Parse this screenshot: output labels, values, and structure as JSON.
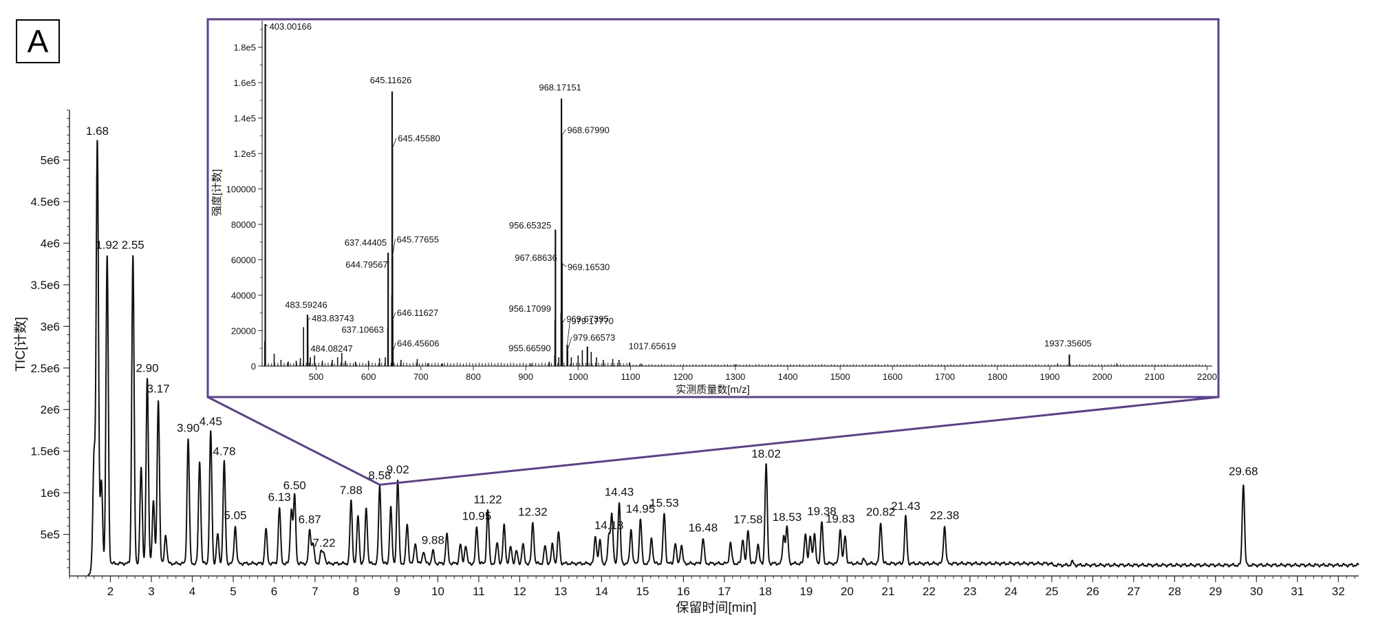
{
  "panel_label": "A",
  "colors": {
    "trace": "#111111",
    "inset_border": "#5b3f8e",
    "axis": "#333333"
  },
  "chart_data": [
    {
      "type": "line",
      "name": "main_chromatogram",
      "xlabel": "保留时间[min]",
      "ylabel": "TIC[计数]",
      "xlim": [
        1.0,
        32.5
      ],
      "ylim": [
        0,
        5600000
      ],
      "x_ticks": [
        2,
        3,
        4,
        5,
        6,
        7,
        8,
        9,
        10,
        11,
        12,
        13,
        14,
        15,
        16,
        17,
        18,
        19,
        20,
        21,
        22,
        23,
        24,
        25,
        26,
        27,
        28,
        29,
        30,
        31,
        32
      ],
      "y_ticks": [
        {
          "v": 500000,
          "label": "5e5"
        },
        {
          "v": 1000000,
          "label": "1e6"
        },
        {
          "v": 1500000,
          "label": "1.5e6"
        },
        {
          "v": 2000000,
          "label": "2e6"
        },
        {
          "v": 2500000,
          "label": "2.5e6"
        },
        {
          "v": 3000000,
          "label": "3e6"
        },
        {
          "v": 3500000,
          "label": "3.5e6"
        },
        {
          "v": 4000000,
          "label": "4e6"
        },
        {
          "v": 4500000,
          "label": "4.5e6"
        },
        {
          "v": 5000000,
          "label": "5e6"
        }
      ],
      "baseline": 150000,
      "labeled_peaks": [
        {
          "rt": 1.68,
          "label": "1.68",
          "intensity": 5220000
        },
        {
          "rt": 1.92,
          "label": "1.92",
          "intensity": 3850000
        },
        {
          "rt": 2.55,
          "label": "2.55",
          "intensity": 3850000
        },
        {
          "rt": 2.9,
          "label": "2.90",
          "intensity": 2370000
        },
        {
          "rt": 3.17,
          "label": "3.17",
          "intensity": 2120000
        },
        {
          "rt": 3.9,
          "label": "3.90",
          "intensity": 1650000
        },
        {
          "rt": 4.45,
          "label": "4.45",
          "intensity": 1730000
        },
        {
          "rt": 4.78,
          "label": "4.78",
          "intensity": 1370000
        },
        {
          "rt": 5.05,
          "label": "5.05",
          "intensity": 600000
        },
        {
          "rt": 6.13,
          "label": "6.13",
          "intensity": 820000
        },
        {
          "rt": 6.5,
          "label": "6.50",
          "intensity": 960000
        },
        {
          "rt": 6.87,
          "label": "6.87",
          "intensity": 550000
        },
        {
          "rt": 7.22,
          "label": "7.22",
          "intensity": 270000
        },
        {
          "rt": 7.88,
          "label": "7.88",
          "intensity": 900000
        },
        {
          "rt": 8.58,
          "label": "8.58",
          "intensity": 1080000
        },
        {
          "rt": 9.02,
          "label": "9.02",
          "intensity": 1150000
        },
        {
          "rt": 9.88,
          "label": "9.88",
          "intensity": 300000
        },
        {
          "rt": 10.95,
          "label": "10.95",
          "intensity": 590000
        },
        {
          "rt": 11.22,
          "label": "11.22",
          "intensity": 790000
        },
        {
          "rt": 12.32,
          "label": "12.32",
          "intensity": 640000
        },
        {
          "rt": 14.18,
          "label": "14.18",
          "intensity": 480000
        },
        {
          "rt": 14.43,
          "label": "14.43",
          "intensity": 880000
        },
        {
          "rt": 14.95,
          "label": "14.95",
          "intensity": 680000
        },
        {
          "rt": 15.53,
          "label": "15.53",
          "intensity": 750000
        },
        {
          "rt": 16.48,
          "label": "16.48",
          "intensity": 450000
        },
        {
          "rt": 17.58,
          "label": "17.58",
          "intensity": 550000
        },
        {
          "rt": 18.02,
          "label": "18.02",
          "intensity": 1340000
        },
        {
          "rt": 18.53,
          "label": "18.53",
          "intensity": 580000
        },
        {
          "rt": 19.38,
          "label": "19.38",
          "intensity": 650000
        },
        {
          "rt": 19.83,
          "label": "19.83",
          "intensity": 560000
        },
        {
          "rt": 20.82,
          "label": "20.82",
          "intensity": 640000
        },
        {
          "rt": 21.43,
          "label": "21.43",
          "intensity": 710000
        },
        {
          "rt": 22.38,
          "label": "22.38",
          "intensity": 600000
        },
        {
          "rt": 29.68,
          "label": "29.68",
          "intensity": 1130000
        }
      ],
      "minor_peaks": [
        {
          "rt": 1.6,
          "intensity": 1430000
        },
        {
          "rt": 1.78,
          "intensity": 1150000
        },
        {
          "rt": 2.75,
          "intensity": 1300000
        },
        {
          "rt": 3.05,
          "intensity": 900000
        },
        {
          "rt": 3.35,
          "intensity": 500000
        },
        {
          "rt": 4.18,
          "intensity": 1380000
        },
        {
          "rt": 4.62,
          "intensity": 500000
        },
        {
          "rt": 5.8,
          "intensity": 560000
        },
        {
          "rt": 6.42,
          "intensity": 800000
        },
        {
          "rt": 6.95,
          "intensity": 400000
        },
        {
          "rt": 7.15,
          "intensity": 300000
        },
        {
          "rt": 8.05,
          "intensity": 720000
        },
        {
          "rt": 8.25,
          "intensity": 820000
        },
        {
          "rt": 8.85,
          "intensity": 820000
        },
        {
          "rt": 9.25,
          "intensity": 620000
        },
        {
          "rt": 9.45,
          "intensity": 400000
        },
        {
          "rt": 9.65,
          "intensity": 300000
        },
        {
          "rt": 10.22,
          "intensity": 500000
        },
        {
          "rt": 10.55,
          "intensity": 380000
        },
        {
          "rt": 10.68,
          "intensity": 370000
        },
        {
          "rt": 11.45,
          "intensity": 400000
        },
        {
          "rt": 11.62,
          "intensity": 610000
        },
        {
          "rt": 11.78,
          "intensity": 350000
        },
        {
          "rt": 11.92,
          "intensity": 300000
        },
        {
          "rt": 12.08,
          "intensity": 380000
        },
        {
          "rt": 12.62,
          "intensity": 360000
        },
        {
          "rt": 12.8,
          "intensity": 380000
        },
        {
          "rt": 12.95,
          "intensity": 520000
        },
        {
          "rt": 13.85,
          "intensity": 480000
        },
        {
          "rt": 13.96,
          "intensity": 420000
        },
        {
          "rt": 14.25,
          "intensity": 740000
        },
        {
          "rt": 14.72,
          "intensity": 560000
        },
        {
          "rt": 15.22,
          "intensity": 460000
        },
        {
          "rt": 15.8,
          "intensity": 390000
        },
        {
          "rt": 15.95,
          "intensity": 370000
        },
        {
          "rt": 17.15,
          "intensity": 400000
        },
        {
          "rt": 17.45,
          "intensity": 450000
        },
        {
          "rt": 17.82,
          "intensity": 380000
        },
        {
          "rt": 18.45,
          "intensity": 480000
        },
        {
          "rt": 18.98,
          "intensity": 520000
        },
        {
          "rt": 19.1,
          "intensity": 480000
        },
        {
          "rt": 19.2,
          "intensity": 500000
        },
        {
          "rt": 19.95,
          "intensity": 480000
        },
        {
          "rt": 20.4,
          "intensity": 200000
        },
        {
          "rt": 25.5,
          "intensity": 190000
        }
      ]
    },
    {
      "type": "bar",
      "name": "inset_mass_spectrum",
      "xlabel": "实测质量数[m/z]",
      "ylabel": "强度[计数]",
      "xlim": [
        397,
        2210
      ],
      "ylim": [
        0,
        195000
      ],
      "x_ticks": [
        500,
        600,
        700,
        800,
        900,
        1000,
        1100,
        1200,
        1300,
        1400,
        1500,
        1600,
        1700,
        1800,
        1900,
        2000,
        2100,
        2200
      ],
      "y_ticks": [
        {
          "v": 0,
          "label": "0"
        },
        {
          "v": 20000,
          "label": "20000"
        },
        {
          "v": 40000,
          "label": "40000"
        },
        {
          "v": 60000,
          "label": "60000"
        },
        {
          "v": 80000,
          "label": "80000"
        },
        {
          "v": 100000,
          "label": "100000"
        },
        {
          "v": 120000,
          "label": "1.2e5"
        },
        {
          "v": 140000,
          "label": "1.4e5"
        },
        {
          "v": 160000,
          "label": "1.6e5"
        },
        {
          "v": 180000,
          "label": "1.8e5"
        }
      ],
      "labeled_peaks": [
        {
          "mz": 403.00166,
          "label": "403.00166",
          "intensity": 193000
        },
        {
          "mz": 483.59246,
          "label": "483.59246",
          "intensity": 29000
        },
        {
          "mz": 483.83743,
          "label": "483.83743",
          "intensity": 26000
        },
        {
          "mz": 484.08247,
          "label": "484.08247",
          "intensity": 12000
        },
        {
          "mz": 637.44405,
          "label": "637.44405",
          "intensity": 64000
        },
        {
          "mz": 637.10663,
          "label": "637.10663",
          "intensity": 22000
        },
        {
          "mz": 644.79567,
          "label": "644.79567",
          "intensity": 40000
        },
        {
          "mz": 645.11626,
          "label": "645.11626",
          "intensity": 155000
        },
        {
          "mz": 645.4558,
          "label": "645.45580",
          "intensity": 123000
        },
        {
          "mz": 645.77655,
          "label": "645.77655",
          "intensity": 62000
        },
        {
          "mz": 646.11627,
          "label": "646.11627",
          "intensity": 26000
        },
        {
          "mz": 646.45606,
          "label": "646.45606",
          "intensity": 8000
        },
        {
          "mz": 956.65325,
          "label": "956.65325",
          "intensity": 77000
        },
        {
          "mz": 956.17099,
          "label": "956.17099",
          "intensity": 26000
        },
        {
          "mz": 955.6659,
          "label": "955.66590",
          "intensity": 6000
        },
        {
          "mz": 967.68636,
          "label": "967.68636",
          "intensity": 30000
        },
        {
          "mz": 968.17151,
          "label": "968.17151",
          "intensity": 151000
        },
        {
          "mz": 968.6799,
          "label": "968.67990",
          "intensity": 130000
        },
        {
          "mz": 969.1653,
          "label": "969.16530",
          "intensity": 58000
        },
        {
          "mz": 969.67395,
          "label": "969.67395",
          "intensity": 24000
        },
        {
          "mz": 979.1777,
          "label": "979.17770",
          "intensity": 12000
        },
        {
          "mz": 979.66573,
          "label": "979.66573",
          "intensity": 9000
        },
        {
          "mz": 1017.65619,
          "label": "1017.65619",
          "intensity": 11000
        },
        {
          "mz": 1937.35605,
          "label": "1937.35605",
          "intensity": 6500
        }
      ],
      "minor_peaks": [
        {
          "mz": 402,
          "intensity": 14000
        },
        {
          "mz": 420,
          "intensity": 7000
        },
        {
          "mz": 433,
          "intensity": 3500
        },
        {
          "mz": 447,
          "intensity": 2500
        },
        {
          "mz": 462,
          "intensity": 3000
        },
        {
          "mz": 470,
          "intensity": 4500
        },
        {
          "mz": 476,
          "intensity": 22000
        },
        {
          "mz": 489,
          "intensity": 5000
        },
        {
          "mz": 497,
          "intensity": 6000
        },
        {
          "mz": 512,
          "intensity": 3000
        },
        {
          "mz": 531,
          "intensity": 3500
        },
        {
          "mz": 541,
          "intensity": 5000
        },
        {
          "mz": 549,
          "intensity": 7500
        },
        {
          "mz": 556,
          "intensity": 3000
        },
        {
          "mz": 575,
          "intensity": 2500
        },
        {
          "mz": 600,
          "intensity": 3000
        },
        {
          "mz": 621,
          "intensity": 4500
        },
        {
          "mz": 632,
          "intensity": 5000
        },
        {
          "mz": 662,
          "intensity": 3500
        },
        {
          "mz": 693,
          "intensity": 4000
        },
        {
          "mz": 713,
          "intensity": 1500
        },
        {
          "mz": 741,
          "intensity": 1500
        },
        {
          "mz": 910,
          "intensity": 1500
        },
        {
          "mz": 945,
          "intensity": 2500
        },
        {
          "mz": 963,
          "intensity": 5000
        },
        {
          "mz": 987,
          "intensity": 5000
        },
        {
          "mz": 1000,
          "intensity": 6000
        },
        {
          "mz": 1008,
          "intensity": 9000
        },
        {
          "mz": 1025,
          "intensity": 8000
        },
        {
          "mz": 1035,
          "intensity": 5000
        },
        {
          "mz": 1048,
          "intensity": 3500
        },
        {
          "mz": 1066,
          "intensity": 4000
        },
        {
          "mz": 1078,
          "intensity": 3500
        },
        {
          "mz": 1098,
          "intensity": 2000
        },
        {
          "mz": 1120,
          "intensity": 1500
        },
        {
          "mz": 1300,
          "intensity": 1000
        },
        {
          "mz": 1915,
          "intensity": 1500
        },
        {
          "mz": 2028,
          "intensity": 1500
        }
      ]
    }
  ]
}
